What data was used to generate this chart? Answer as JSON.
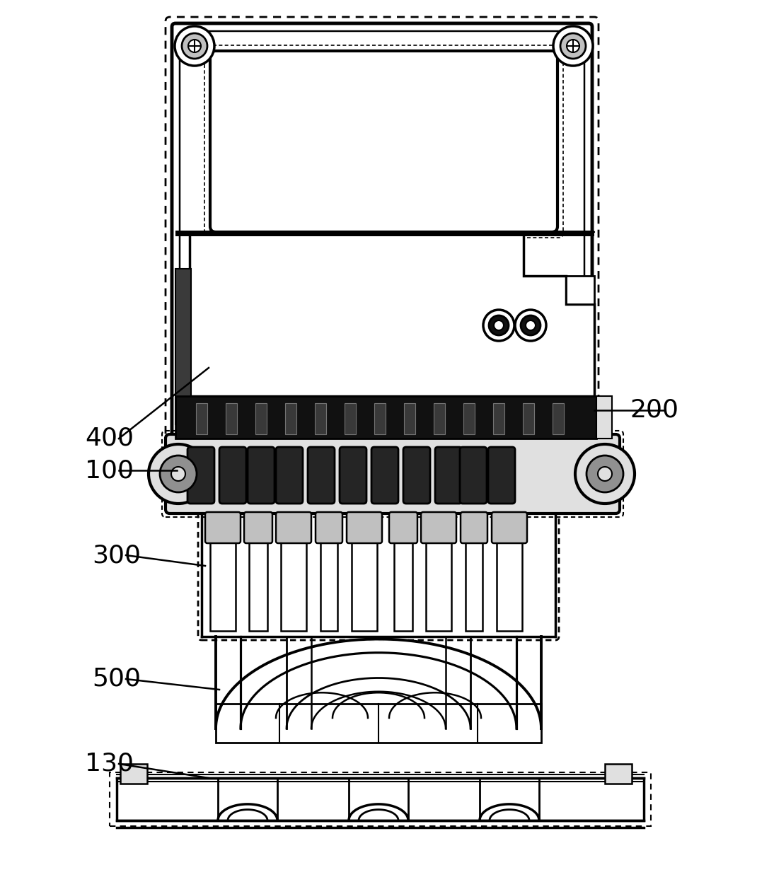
{
  "bg_color": "#ffffff",
  "lc": "#000000",
  "dark": "#111111",
  "gray": "#c0c0c0",
  "lgray": "#e0e0e0",
  "mgray": "#909090",
  "figsize": [
    10.7,
    12.47
  ],
  "dpi": 100,
  "lfs": 26
}
